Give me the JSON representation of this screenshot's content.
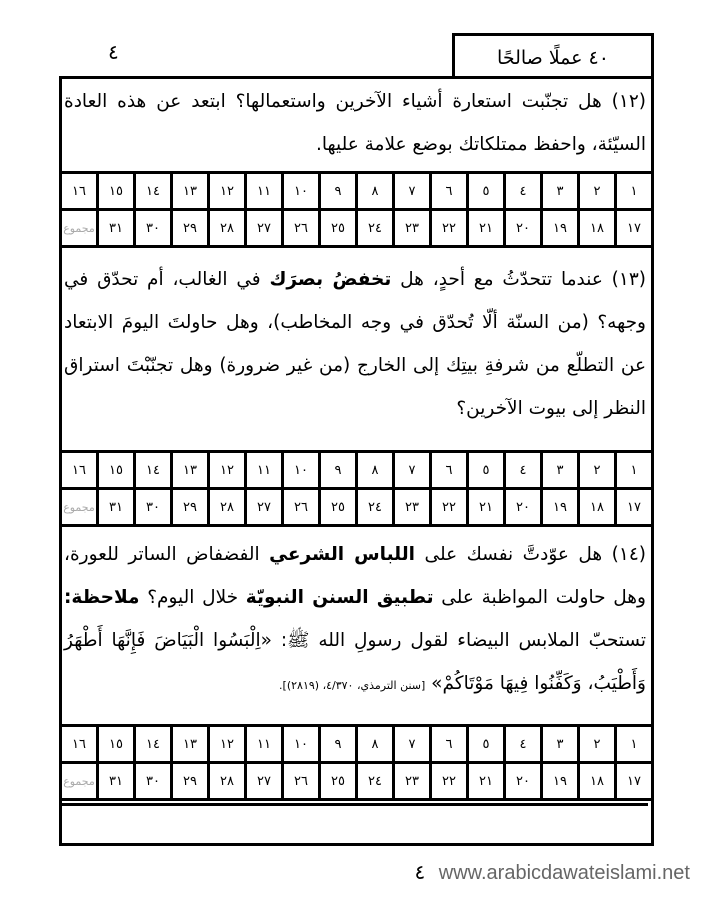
{
  "header": {
    "title": "٤٠ عملًا صالحًا",
    "page_number": "٤"
  },
  "sections": [
    {
      "paragraph": [
        {
          "text": "(١٢) هل تجنّبت استعارة أشياء الآخرين واستعمالها؟ ابتعد عن هذه العادة السيّئة، واحفظ ممتلكاتك بوضع علامة عليها.",
          "bold": false
        }
      ]
    },
    {
      "paragraph": [
        {
          "text": "(١٣) عندما تتحدّثُ مع أحدٍ، هل ",
          "bold": false
        },
        {
          "text": "تخفضُ بصرَك",
          "bold": true
        },
        {
          "text": " في الغالب، أم تحدّق في وجهه؟ (من السنّة ألّا تُحدّق في وجه المخاطب)، وهل حاولتَ اليومَ الابتعاد عن التطلّع من شرفةِ بيتِك إلى الخارج (من غير ضرورة) وهل تجنّبْتَ استراق النظر إلى بيوت الآخرين؟",
          "bold": false
        }
      ]
    },
    {
      "paragraph": [
        {
          "text": "(١٤) هل عوّدتَّ نفسك على ",
          "bold": false
        },
        {
          "text": "اللباس الشرعي",
          "bold": true
        },
        {
          "text": " الفضفاض الساتر للعورة، وهل حاولت المواظبة على ",
          "bold": false
        },
        {
          "text": "تطبيق السنن النبويّة",
          "bold": true
        },
        {
          "text": " خلال اليوم؟ ",
          "bold": false
        },
        {
          "text": "ملاحظة:",
          "bold": true
        },
        {
          "text": " تستحبّ الملابس البيضاء لقول رسولِ الله ﷺ: «اِلْبَسُوا الْبَيَاضَ فَإِنَّهَا أَطْهَرُ وَأَطْيَبُ، وَكَفِّنُوا فِيهَا مَوْتَاكُمْ» ",
          "bold": false
        },
        {
          "text": "[سنن الترمذي، ٤/٣٧٠، (٢٨١٩)].",
          "bold": false,
          "small": true
        }
      ]
    }
  ],
  "tracker": {
    "row1": [
      "١",
      "٢",
      "٣",
      "٤",
      "٥",
      "٦",
      "٧",
      "٨",
      "٩",
      "١٠",
      "١١",
      "١٢",
      "١٣",
      "١٤",
      "١٥",
      "١٦"
    ],
    "row2": [
      "١٧",
      "١٨",
      "١٩",
      "٢٠",
      "٢١",
      "٢٢",
      "٢٣",
      "٢٤",
      "٢٥",
      "٢٦",
      "٢٧",
      "٢٨",
      "٢٩",
      "٣٠",
      "٣١",
      "مجموع"
    ]
  },
  "footer": {
    "page_number": "٤",
    "url": "www.arabicdawateislami.net"
  }
}
